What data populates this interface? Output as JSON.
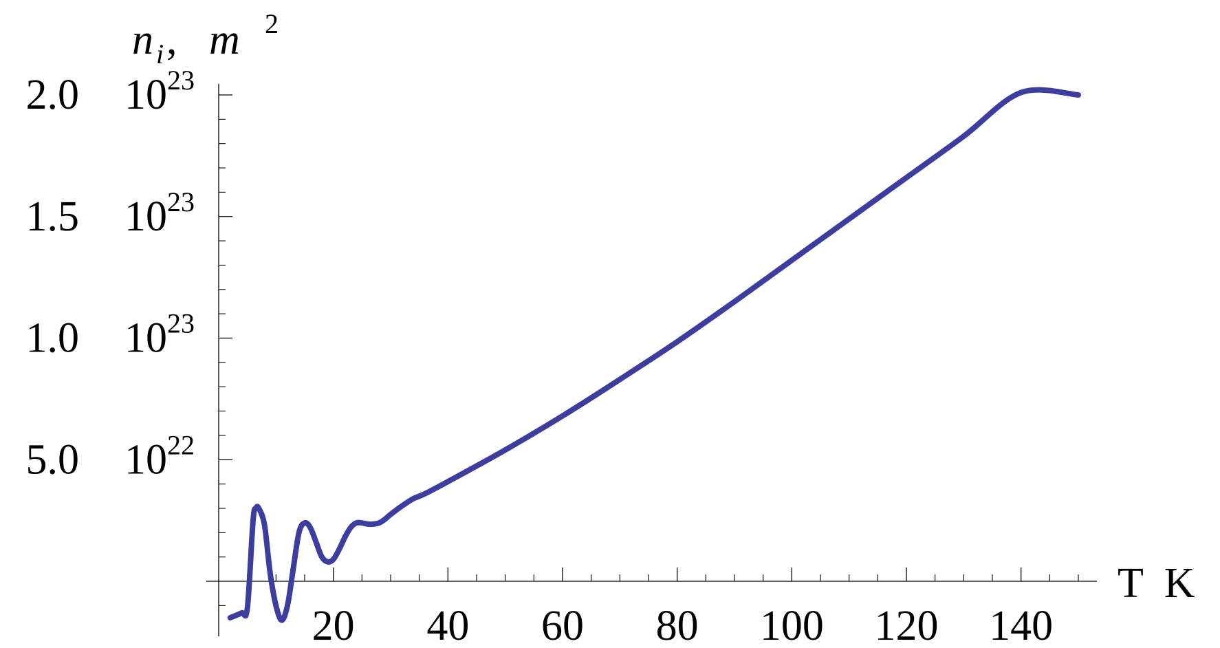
{
  "chart_data": {
    "type": "line",
    "xlabel": "T  K",
    "ylabel": {
      "var": "n",
      "sub": "i",
      "unit": "m",
      "sup": "2"
    },
    "xlim": [
      0,
      152
    ],
    "ylim": [
      -1.6e+22,
      2e+23
    ],
    "x_ticks": [
      20,
      40,
      60,
      80,
      100,
      120,
      140
    ],
    "x_tick_labels": [
      "20",
      "40",
      "60",
      "80",
      "100",
      "120",
      "140"
    ],
    "y_ticks": [
      {
        "value": 5e+22,
        "mantissa": "5.0",
        "base": "10",
        "exp": "22"
      },
      {
        "value": 1e+23,
        "mantissa": "1.0",
        "base": "10",
        "exp": "23"
      },
      {
        "value": 1.5e+23,
        "mantissa": "1.5",
        "base": "10",
        "exp": "23"
      },
      {
        "value": 2e+23,
        "mantissa": "2.0",
        "base": "10",
        "exp": "23"
      }
    ],
    "line_color": "#3d3d9e",
    "series": [
      {
        "x": [
          2,
          4,
          5,
          6,
          6.5,
          7,
          8,
          9,
          10,
          11,
          12,
          13,
          14,
          15,
          16,
          17,
          18,
          19,
          20,
          21,
          22,
          23,
          24,
          25,
          26,
          27,
          28,
          29,
          30,
          32,
          34,
          36,
          40,
          50,
          60,
          70,
          80,
          90,
          100,
          110,
          120,
          130,
          140,
          150
        ],
        "y": [
          -1.5e+22,
          -1.3e+22,
          -1.1e+22,
          2.5e+22,
          3e+22,
          3e+22,
          2.3e+22,
          3e+21,
          -1e+22,
          -1.6e+22,
          -1e+22,
          5e+21,
          2e+22,
          2.4e+22,
          2.2e+22,
          1.6e+22,
          1e+22,
          8e+21,
          9e+21,
          1.3e+22,
          1.8e+22,
          2.2e+22,
          2.4e+22,
          2.4e+22,
          2.35e+22,
          2.35e+22,
          2.4e+22,
          2.55e+22,
          2.75e+22,
          3.1e+22,
          3.4e+22,
          3.6e+22,
          4.1e+22,
          5.4e+22,
          6.8e+22,
          8.3e+22,
          9.85e+22,
          1.15e+23,
          1.32e+23,
          1.49e+23,
          1.66e+23,
          1.83e+23,
          2.01e+23,
          2e+23
        ]
      }
    ]
  }
}
